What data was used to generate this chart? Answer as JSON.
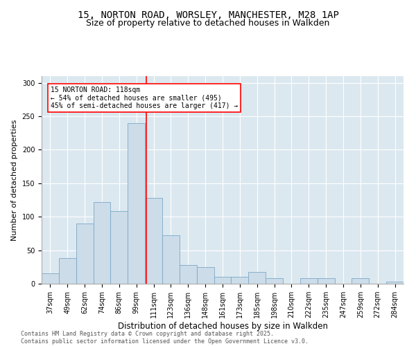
{
  "title_line1": "15, NORTON ROAD, WORSLEY, MANCHESTER, M28 1AP",
  "title_line2": "Size of property relative to detached houses in Walkden",
  "xlabel": "Distribution of detached houses by size in Walkden",
  "ylabel": "Number of detached properties",
  "categories": [
    "37sqm",
    "49sqm",
    "62sqm",
    "74sqm",
    "86sqm",
    "99sqm",
    "111sqm",
    "123sqm",
    "136sqm",
    "148sqm",
    "161sqm",
    "173sqm",
    "185sqm",
    "198sqm",
    "210sqm",
    "222sqm",
    "235sqm",
    "247sqm",
    "259sqm",
    "272sqm",
    "284sqm"
  ],
  "values": [
    15,
    38,
    90,
    122,
    108,
    240,
    128,
    72,
    28,
    25,
    10,
    10,
    18,
    8,
    0,
    8,
    8,
    0,
    8,
    0,
    3
  ],
  "bar_color": "#ccdce8",
  "bar_edge_color": "#7aa8c8",
  "vline_color": "red",
  "vline_pos": 5.58,
  "annotation_text": "15 NORTON ROAD: 118sqm\n← 54% of detached houses are smaller (495)\n45% of semi-detached houses are larger (417) →",
  "annotation_box_color": "white",
  "annotation_box_edge": "red",
  "ylim": [
    0,
    310
  ],
  "yticks": [
    0,
    50,
    100,
    150,
    200,
    250,
    300
  ],
  "bg_color": "#dce8f0",
  "footer_line1": "Contains HM Land Registry data © Crown copyright and database right 2025.",
  "footer_line2": "Contains public sector information licensed under the Open Government Licence v3.0.",
  "title_fontsize": 10,
  "subtitle_fontsize": 9,
  "tick_fontsize": 7,
  "ylabel_fontsize": 8,
  "xlabel_fontsize": 8.5,
  "annot_fontsize": 7,
  "footer_fontsize": 6
}
